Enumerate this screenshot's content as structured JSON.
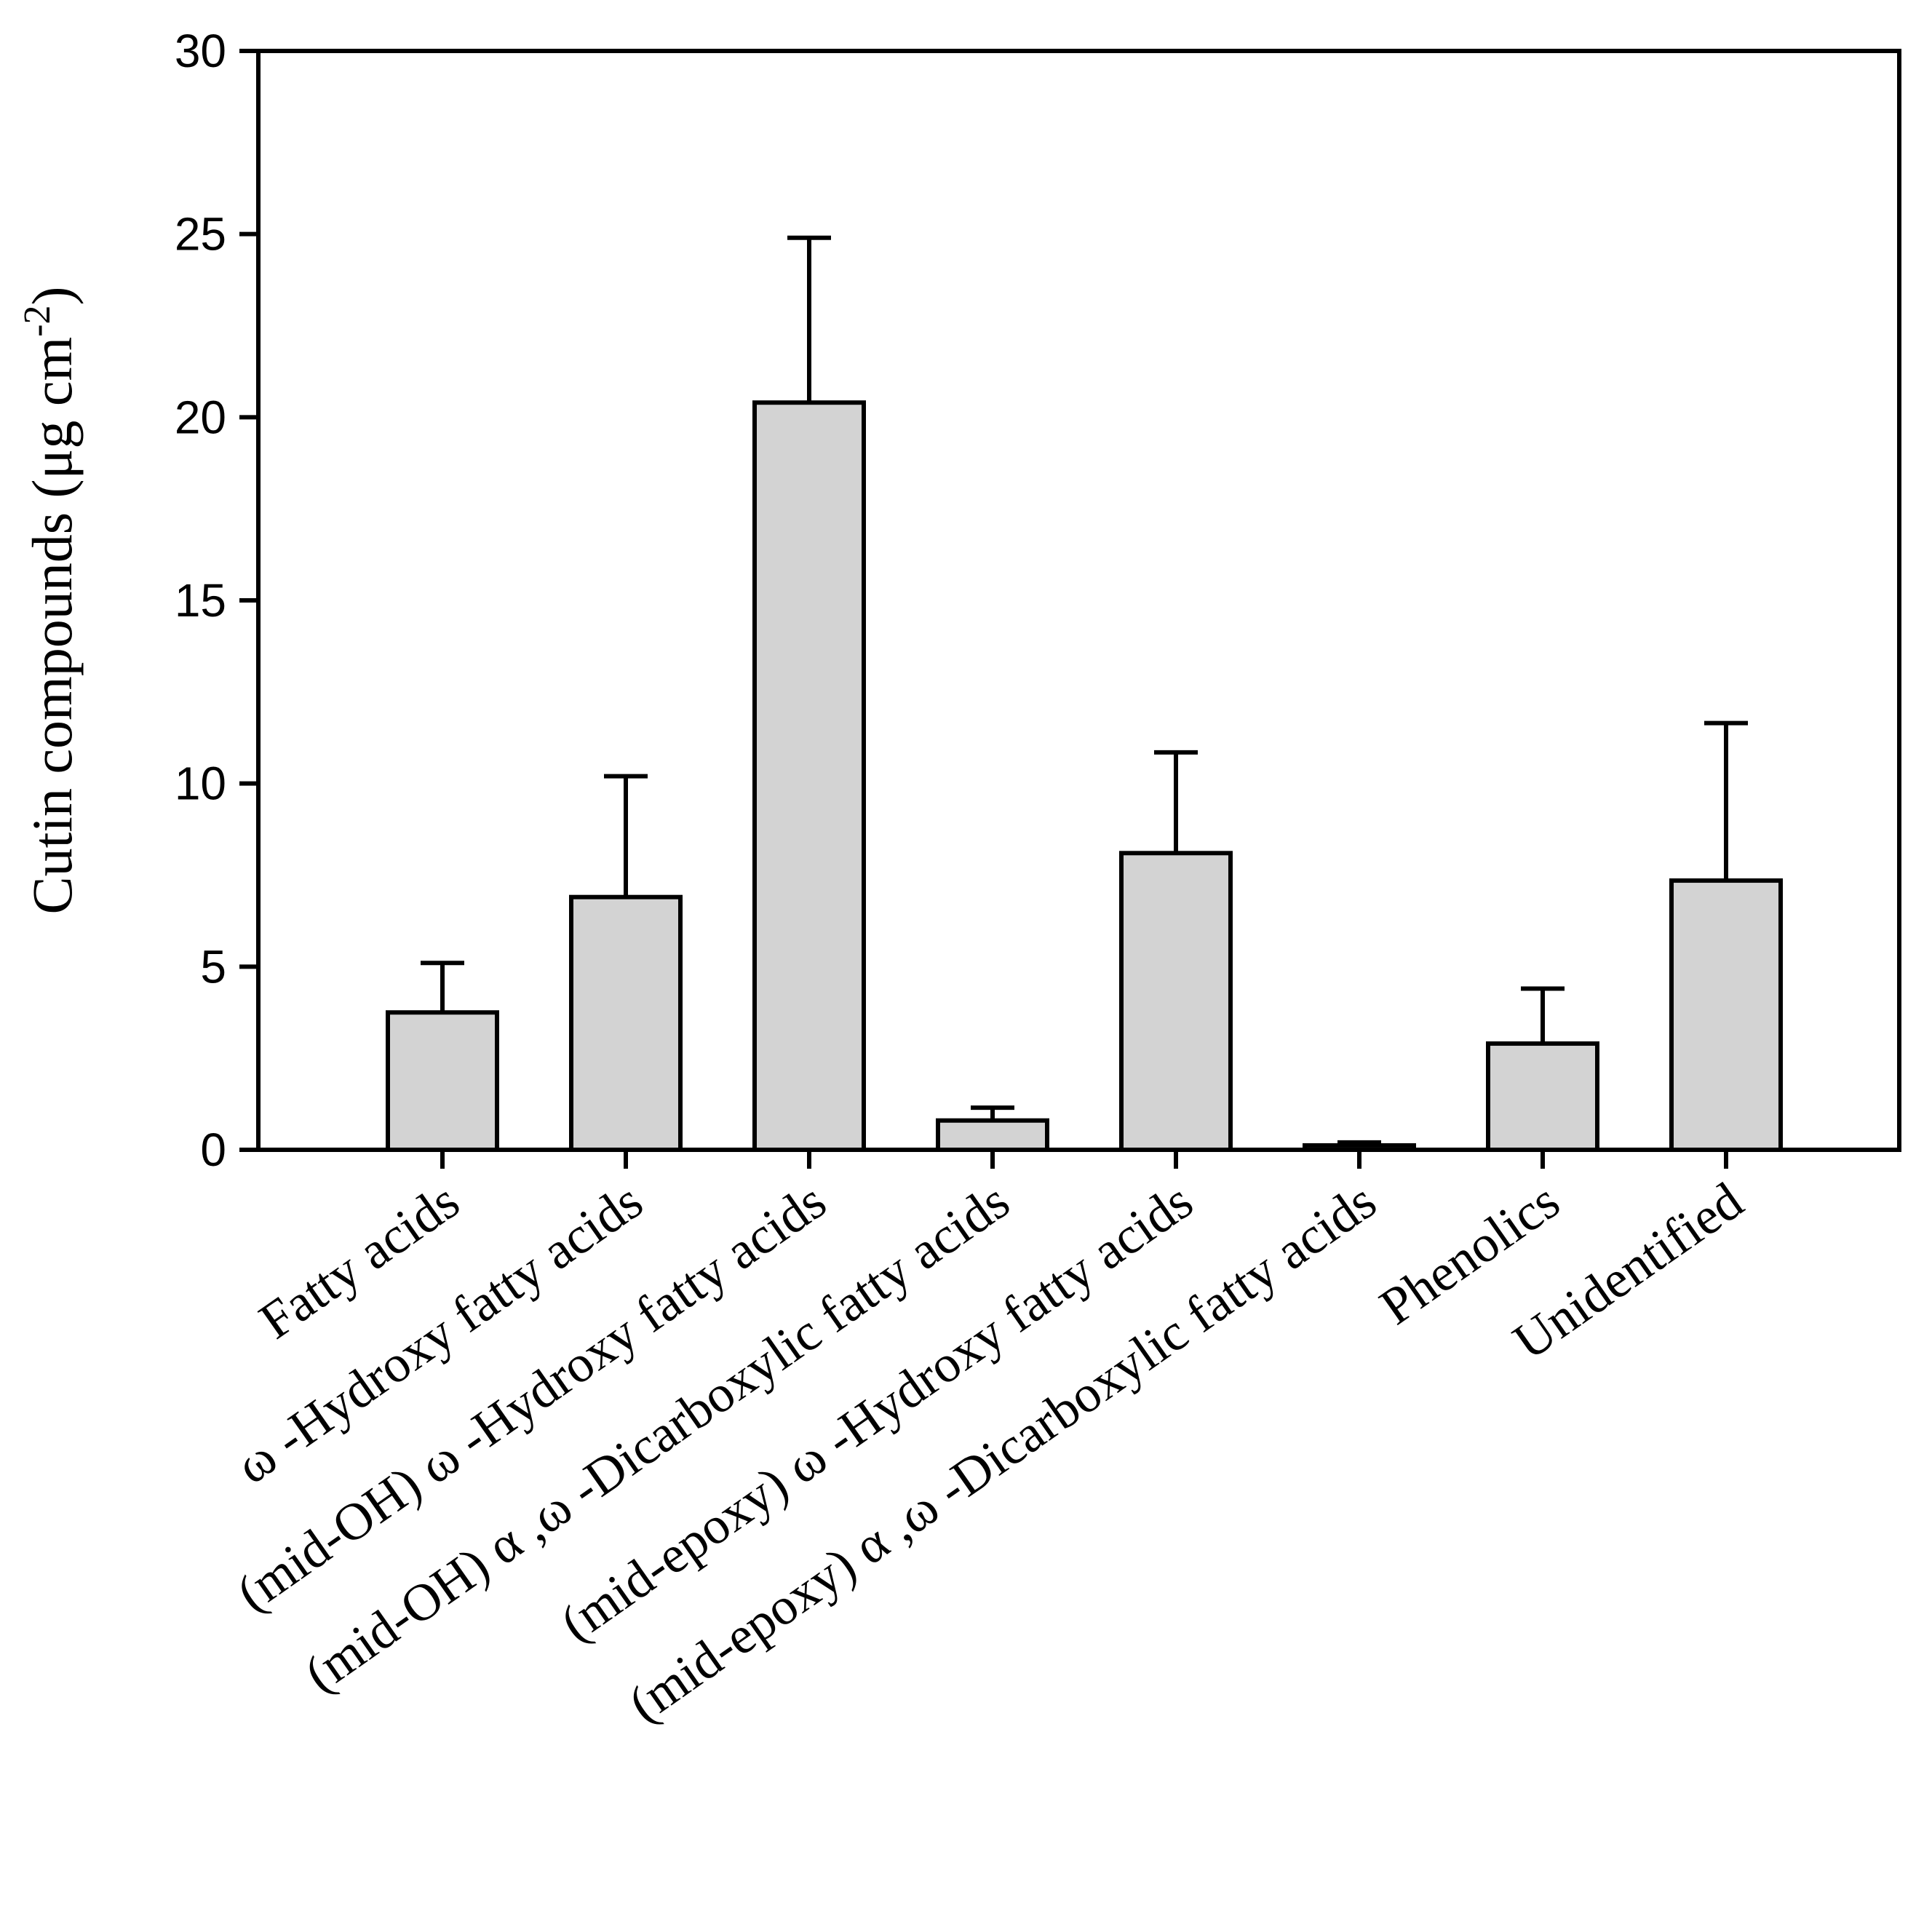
{
  "chart_data": {
    "type": "bar",
    "title": "",
    "xlabel": "",
    "ylabel_main": "Cutin compounds (μg cm",
    "ylabel_superscript": "-2",
    "ylabel_close": ")",
    "ylim": [
      0,
      30
    ],
    "yticks": [
      0,
      5,
      10,
      15,
      20,
      25,
      30
    ],
    "categories": [
      "Fatty acids",
      "ω -Hydroxy fatty acids",
      "(mid-OH) ω -Hydroxy fatty acids",
      "(mid-OH) α ,ω -Dicarboxylic fatty acids",
      "(mid-epoxy) ω -Hydroxy fatty acids",
      "(mid-epoxy) α ,ω -Dicarboxylic fatty acids",
      "Phenolics",
      "Unidentified"
    ],
    "values": [
      3.75,
      6.9,
      20.4,
      0.8,
      8.1,
      0.12,
      2.9,
      7.35
    ],
    "errors": [
      1.35,
      3.3,
      4.5,
      0.35,
      2.75,
      0.08,
      1.5,
      4.3
    ],
    "colors": {
      "bar_fill": "#d3d3d3",
      "stroke": "#000000"
    }
  }
}
